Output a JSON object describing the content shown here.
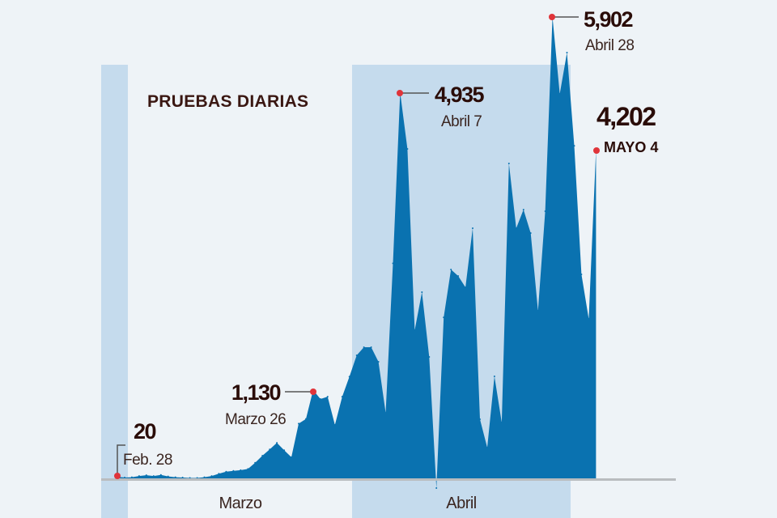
{
  "chart_data": {
    "type": "area",
    "title": "PRUEBAS DIARIAS",
    "xlabel": "",
    "ylabel": "",
    "ylim": [
      0,
      5902
    ],
    "grid": false,
    "legend": "none",
    "colors": {
      "area": "#0a72b0",
      "band": "#c5dbed",
      "background": "#eef3f7",
      "marker": "#e0343a",
      "text": "#2a0c08"
    },
    "month_labels": [
      "Marzo",
      "Abril"
    ],
    "x": [
      "Feb 28",
      "Feb 29",
      "Mar 1",
      "Mar 2",
      "Mar 3",
      "Mar 4",
      "Mar 5",
      "Mar 6",
      "Mar 7",
      "Mar 8",
      "Mar 9",
      "Mar 10",
      "Mar 11",
      "Mar 12",
      "Mar 13",
      "Mar 14",
      "Mar 15",
      "Mar 16",
      "Mar 17",
      "Mar 18",
      "Mar 19",
      "Mar 20",
      "Mar 21",
      "Mar 22",
      "Mar 23",
      "Mar 24",
      "Mar 25",
      "Mar 26",
      "Mar 27",
      "Mar 28",
      "Mar 29",
      "Mar 30",
      "Mar 31",
      "Apr 1",
      "Apr 2",
      "Apr 3",
      "Apr 4",
      "Apr 5",
      "Apr 6",
      "Apr 7",
      "Apr 8",
      "Apr 9",
      "Apr 10",
      "Apr 11",
      "Apr 12",
      "Apr 13",
      "Apr 14",
      "Apr 15",
      "Apr 16",
      "Apr 17",
      "Apr 18",
      "Apr 19",
      "Apr 20",
      "Apr 21",
      "Apr 22",
      "Apr 23",
      "Apr 24",
      "Apr 25",
      "Apr 26",
      "Apr 27",
      "Apr 28",
      "Apr 29",
      "Apr 30",
      "May 1",
      "May 2",
      "May 3",
      "May 4"
    ],
    "values": [
      20,
      10,
      15,
      30,
      40,
      30,
      45,
      25,
      15,
      10,
      5,
      5,
      15,
      30,
      60,
      85,
      95,
      105,
      120,
      200,
      290,
      370,
      455,
      360,
      270,
      700,
      760,
      1130,
      1015,
      1045,
      683,
      1045,
      1300,
      1574,
      1677,
      1677,
      1491,
      839,
      2750,
      4935,
      4214,
      1895,
      2381,
      1553,
      0,
      2060,
      2671,
      2589,
      2444,
      3199,
      756,
      393,
      1305,
      714,
      4028,
      3199,
      3438,
      3137,
      2143,
      3417,
      5902,
      4918,
      5446,
      4255,
      2609,
      2040,
      4202
    ],
    "annotations": [
      {
        "value": "20",
        "label": "Feb. 28",
        "index": 0
      },
      {
        "value": "1,130",
        "label": "Marzo 26",
        "index": 27
      },
      {
        "value": "4,935",
        "label": "Abril 7",
        "index": 39
      },
      {
        "value": "5,902",
        "label": "Abril 28",
        "index": 60
      },
      {
        "value": "4,202",
        "label": "MAYO 4",
        "index": 66
      }
    ]
  }
}
